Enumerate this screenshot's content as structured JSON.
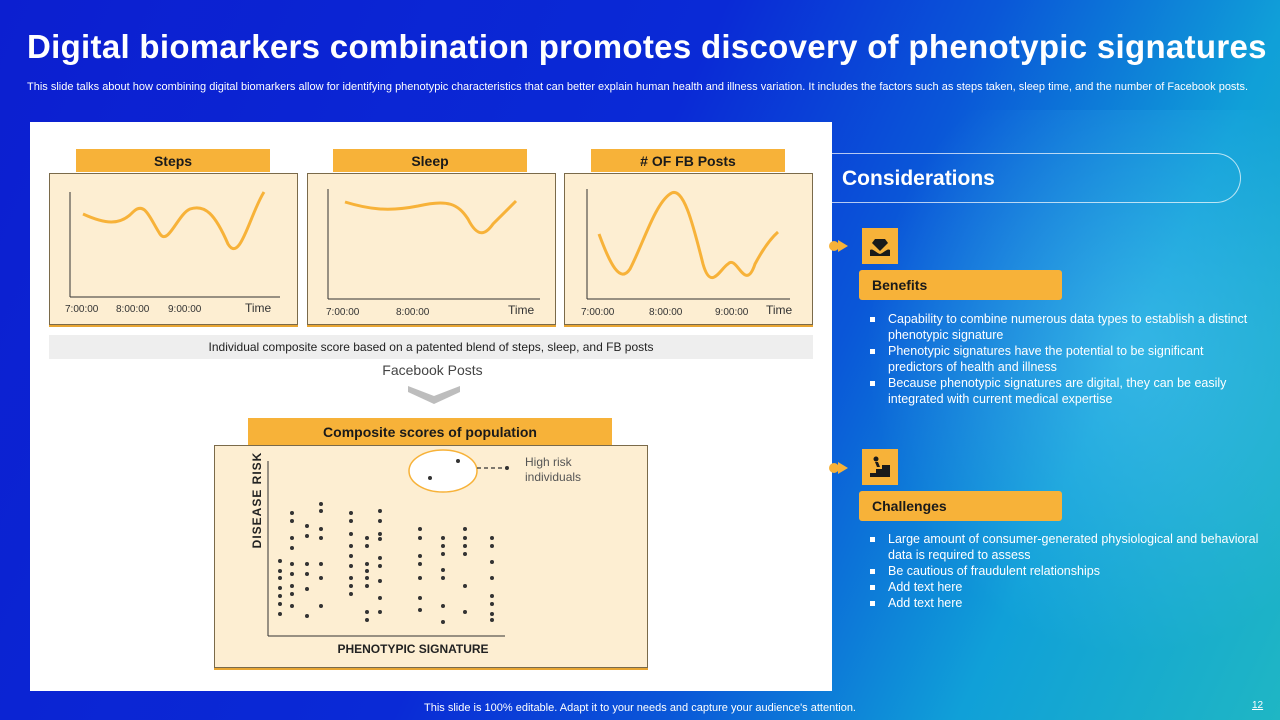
{
  "header": {
    "title": "Digital biomarkers combination promotes discovery of phenotypic signatures",
    "subtitle": "This slide talks about how combining digital biomarkers allow for identifying phenotypic characteristics that can better explain human health and illness variation. It includes the factors such as steps taken, sleep time, and the number of Facebook posts."
  },
  "charts": {
    "steps": {
      "label": "Steps",
      "ticks": [
        "7:00:00",
        "8:00:00",
        "9:00:00"
      ],
      "axis": "Time"
    },
    "sleep": {
      "label": "Sleep",
      "ticks": [
        "7:00:00",
        "8:00:00"
      ],
      "axis": "Time"
    },
    "fb": {
      "label": "# OF FB Posts",
      "ticks": [
        "7:00:00",
        "8:00:00",
        "9:00:00"
      ],
      "axis": "Time"
    }
  },
  "composite_caption": "Individual  composite score based on a patented blend of steps, sleep, and FB posts",
  "fb_posts_label": "Facebook Posts",
  "population": {
    "label": "Composite scores of population",
    "ylabel": "DISEASE RISK",
    "xlabel": "PHENOTYPIC  SIGNATURE",
    "high_risk_line1": "High risk",
    "high_risk_line2": "individuals"
  },
  "considerations": {
    "title": "Considerations",
    "benefits": {
      "label": "Benefits",
      "icon": "hand-diamond-icon",
      "items": [
        "Capability to combine numerous data types to establish a distinct phenotypic signature",
        "Phenotypic signatures have the potential to be significant predictors of health and illness",
        "Because phenotypic signatures are digital, they can be easily integrated with current medical expertise"
      ]
    },
    "challenges": {
      "label": "Challenges",
      "icon": "person-climbing-stairs-icon",
      "items": [
        "Large amount of consumer-generated  physiological and behavioral  data is required  to assess",
        "Be cautious of fraudulent  relationships",
        "Add text here",
        "Add text here"
      ]
    }
  },
  "footer": {
    "text": "This slide is 100% editable. Adapt it to your needs and capture your audience's attention.",
    "page": "12"
  },
  "colors": {
    "accent": "#f7b239",
    "panel": "#fdeed2",
    "background": "#0c1fd0"
  }
}
